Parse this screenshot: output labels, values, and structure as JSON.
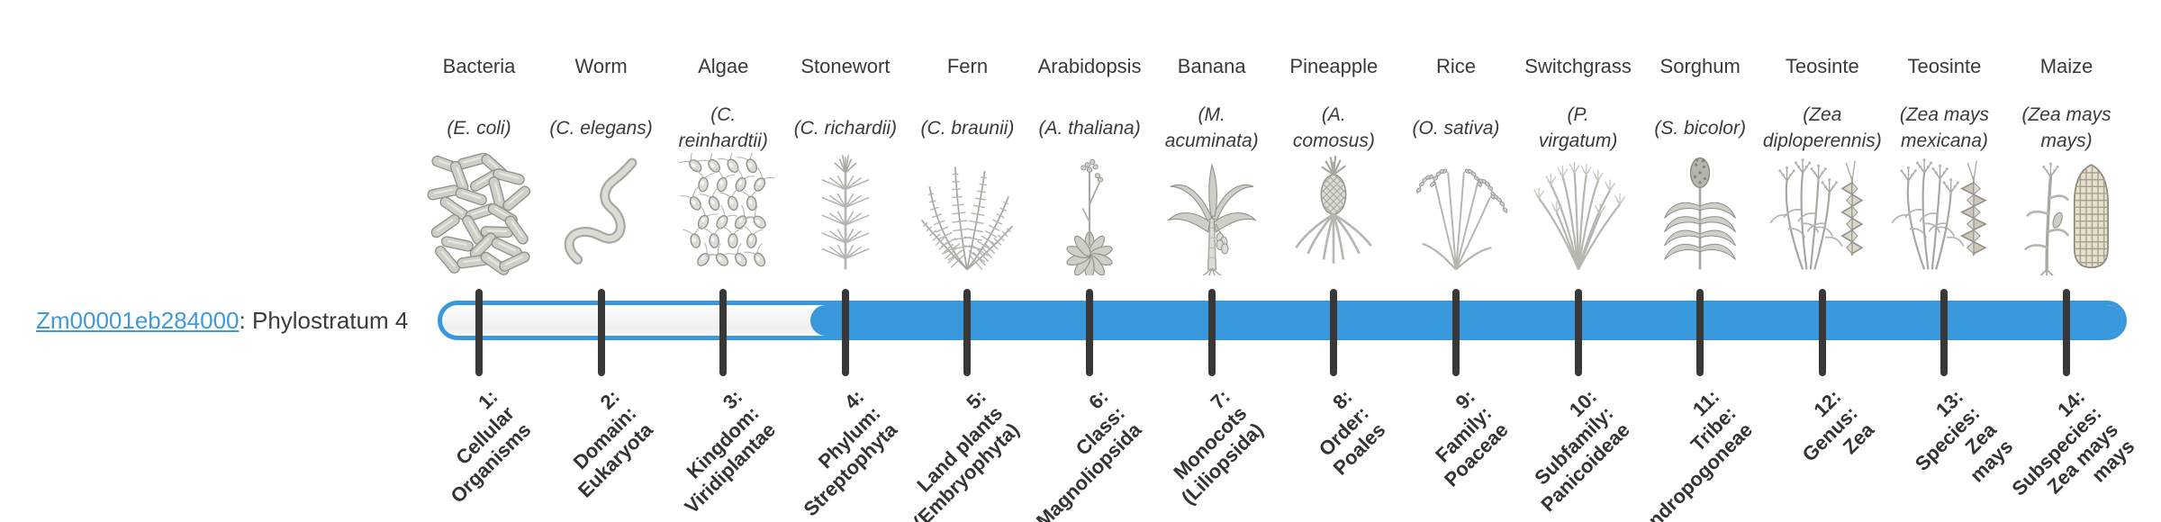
{
  "gene": {
    "id": "Zm00001eb284000",
    "suffix": ": Phylostratum 4"
  },
  "bar": {
    "fill_color": "#3898db",
    "link_color": "#3f9adb",
    "tick_color": "#383838",
    "text_color": "#3a3a3a",
    "filled_from_stratum": 4
  },
  "organisms": [
    {
      "name": "Bacteria",
      "species_lines": [
        "(E. coli)"
      ],
      "icon": "bacteria-icon"
    },
    {
      "name": "Worm",
      "species_lines": [
        "(C. elegans)"
      ],
      "icon": "worm-icon"
    },
    {
      "name": "Algae",
      "species_lines": [
        "(C.",
        "reinhardtii)"
      ],
      "icon": "algae-icon"
    },
    {
      "name": "Stonewort",
      "species_lines": [
        "(C. richardii)"
      ],
      "icon": "stonewort-icon"
    },
    {
      "name": "Fern",
      "species_lines": [
        "(C. braunii)"
      ],
      "icon": "fern-icon"
    },
    {
      "name": "Arabidopsis",
      "species_lines": [
        "(A. thaliana)"
      ],
      "icon": "arabidopsis-icon"
    },
    {
      "name": "Banana",
      "species_lines": [
        "(M.",
        "acuminata)"
      ],
      "icon": "banana-icon"
    },
    {
      "name": "Pineapple",
      "species_lines": [
        "(A.",
        "comosus)"
      ],
      "icon": "pineapple-icon"
    },
    {
      "name": "Rice",
      "species_lines": [
        "(O. sativa)"
      ],
      "icon": "rice-icon"
    },
    {
      "name": "Switchgrass",
      "species_lines": [
        "(P.",
        "virgatum)"
      ],
      "icon": "switchgrass-icon"
    },
    {
      "name": "Sorghum",
      "species_lines": [
        "(S. bicolor)"
      ],
      "icon": "sorghum-icon"
    },
    {
      "name": "Teosinte",
      "species_lines": [
        "(Zea",
        "diploperennis)"
      ],
      "icon": "teosinte-diploperennis-icon"
    },
    {
      "name": "Teosinte",
      "species_lines": [
        "(Zea mays",
        "mexicana)"
      ],
      "icon": "teosinte-mexicana-icon"
    },
    {
      "name": "Maize",
      "species_lines": [
        "(Zea mays",
        "mays)"
      ],
      "icon": "maize-icon"
    }
  ],
  "strata": [
    {
      "lines": [
        "1:",
        "Cellular",
        "Organisms"
      ]
    },
    {
      "lines": [
        "2:",
        "Domain:",
        "Eukaryota"
      ]
    },
    {
      "lines": [
        "3:",
        "Kingdom:",
        "Viridiplantae"
      ]
    },
    {
      "lines": [
        "4:",
        "Phylum:",
        "Streptophyta"
      ]
    },
    {
      "lines": [
        "5:",
        "Land plants",
        "(Embryophyta)"
      ]
    },
    {
      "lines": [
        "6:",
        "Class:",
        "Magnoliopsida"
      ]
    },
    {
      "lines": [
        "7:",
        "Monocots",
        "(Liliopsida)"
      ]
    },
    {
      "lines": [
        "8:",
        "Order:",
        "Poales"
      ]
    },
    {
      "lines": [
        "9:",
        "Family:",
        "Poaceae"
      ]
    },
    {
      "lines": [
        "10:",
        "Subfamily:",
        "Panicoideae"
      ]
    },
    {
      "lines": [
        "11:",
        "Tribe:",
        "Andropogoneae"
      ]
    },
    {
      "lines": [
        "12:",
        "Genus:",
        "Zea"
      ]
    },
    {
      "lines": [
        "13:",
        "Species:",
        "Zea",
        "mays"
      ]
    },
    {
      "lines": [
        "14:",
        "Subspecies:",
        "Zea mays",
        "mays"
      ]
    }
  ]
}
